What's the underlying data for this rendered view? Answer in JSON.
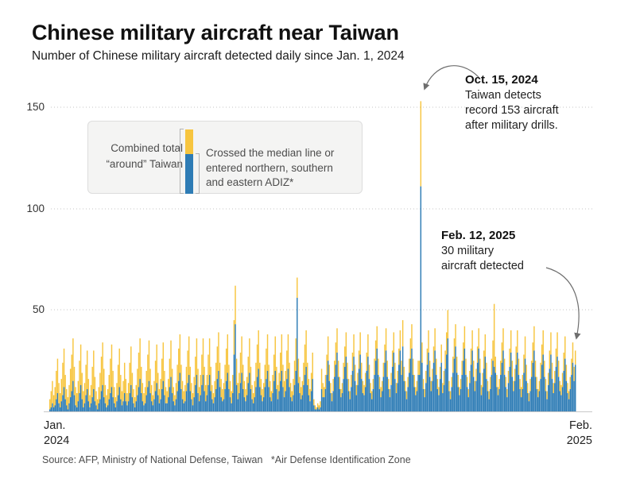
{
  "header": {
    "title": "Chinese military aircraft near Taiwan",
    "subtitle": "Number of Chinese military aircraft detected daily since Jan. 1, 2024"
  },
  "legend": {
    "combined_label": "Combined total\n“around” Taiwan",
    "crossed_label": "Crossed the median line or\nentered northern, southern\nand eastern ADIZ*"
  },
  "annotations": {
    "oct": {
      "title": "Oct. 15, 2024",
      "body": "Taiwan detects\nrecord 153 aircraft\nafter military drills."
    },
    "feb": {
      "title": "Feb. 12, 2025",
      "body": "30 military\naircraft detected"
    }
  },
  "axis": {
    "y_ticks": [
      "150",
      "100",
      "50"
    ],
    "x_left": "Jan.\n2024",
    "x_right": "Feb.\n2025"
  },
  "source": "Source: AFP, Ministry of National Defense, Taiwan   *Air Defense Identification Zone",
  "colors": {
    "combined_yellow": "#F7C53F",
    "crossed_blue": "#2E7CB5",
    "grid": "#c6c6c6",
    "baseline": "#c8c8c8",
    "arrow": "#6e6e6e"
  },
  "chart_data": {
    "type": "bar",
    "title": "Chinese military aircraft near Taiwan",
    "subtitle": "Number of Chinese military aircraft detected daily since Jan. 1, 2024",
    "x_unit": "day",
    "x_range_labels": [
      "Jan. 2024",
      "Feb. 2025"
    ],
    "start_date": "Jan. 1, 2024",
    "end_date": "Feb. 12, 2025",
    "ylim": [
      0,
      160
    ],
    "y_gridlines": [
      50,
      100,
      150
    ],
    "grid": "dotted-horizontal",
    "legend_position": "upper-left",
    "notable_points": [
      {
        "date": "Oct. 15, 2024",
        "total": 153,
        "note": "record after military drills"
      },
      {
        "date": "Feb. 12, 2025",
        "total": 30,
        "note": "30 military aircraft detected"
      }
    ],
    "series": [
      {
        "name": "Combined total “around” Taiwan (total bar height)",
        "color": "#F7C53F",
        "values": [
          6,
          10,
          15,
          8,
          12,
          20,
          26,
          14,
          9,
          16,
          24,
          31,
          18,
          11,
          7,
          13,
          21,
          28,
          36,
          22,
          12,
          9,
          15,
          25,
          33,
          19,
          10,
          14,
          23,
          30,
          16,
          8,
          13,
          22,
          30,
          17,
          10,
          6,
          12,
          19,
          27,
          34,
          21,
          13,
          8,
          11,
          18,
          26,
          33,
          20,
          12,
          7,
          14,
          23,
          31,
          18,
          10,
          15,
          24,
          16,
          9,
          14,
          24,
          32,
          19,
          11,
          7,
          13,
          21,
          29,
          36,
          22,
          14,
          9,
          12,
          20,
          28,
          35,
          21,
          13,
          8,
          15,
          25,
          33,
          19,
          11,
          16,
          26,
          34,
          20,
          12,
          10,
          16,
          26,
          35,
          21,
          12,
          8,
          14,
          23,
          31,
          38,
          23,
          15,
          10,
          13,
          22,
          30,
          37,
          22,
          14,
          9,
          17,
          27,
          36,
          21,
          12,
          18,
          28,
          36,
          22,
          13,
          18,
          28,
          36,
          22,
          13,
          9,
          15,
          24,
          32,
          39,
          24,
          16,
          11,
          14,
          23,
          31,
          38,
          23,
          15,
          10,
          18,
          45,
          62,
          26,
          14,
          19,
          29,
          37,
          23,
          15,
          11,
          17,
          27,
          36,
          22,
          13,
          9,
          15,
          24,
          33,
          40,
          24,
          16,
          11,
          14,
          23,
          31,
          38,
          23,
          15,
          10,
          18,
          28,
          37,
          22,
          13,
          19,
          29,
          38,
          23,
          15,
          20,
          30,
          38,
          24,
          14,
          10,
          16,
          25,
          36,
          66,
          26,
          17,
          12,
          15,
          24,
          33,
          40,
          24,
          16,
          11,
          19,
          29,
          6,
          3,
          2,
          4,
          3,
          5,
          21,
          14,
          12,
          18,
          28,
          37,
          23,
          14,
          9,
          16,
          25,
          34,
          41,
          25,
          17,
          11,
          14,
          24,
          32,
          39,
          24,
          16,
          10,
          18,
          29,
          38,
          23,
          13,
          19,
          30,
          39,
          24,
          15,
          13,
          19,
          29,
          38,
          23,
          14,
          10,
          16,
          26,
          35,
          42,
          26,
          17,
          12,
          15,
          24,
          33,
          41,
          25,
          16,
          11,
          19,
          30,
          39,
          24,
          14,
          20,
          31,
          40,
          25,
          45,
          22,
          15,
          10,
          17,
          26,
          36,
          43,
          26,
          18,
          12,
          15,
          25,
          25,
          153,
          34,
          16,
          11,
          20,
          31,
          40,
          25,
          15,
          21,
          32,
          41,
          26,
          16,
          12,
          22,
          33,
          14,
          20,
          30,
          39,
          50,
          15,
          10,
          17,
          27,
          36,
          43,
          27,
          18,
          12,
          16,
          25,
          34,
          42,
          26,
          17,
          11,
          20,
          31,
          40,
          25,
          15,
          21,
          32,
          41,
          26,
          13,
          19,
          30,
          38,
          24,
          15,
          10,
          17,
          26,
          35,
          53,
          27,
          18,
          12,
          16,
          25,
          34,
          41,
          26,
          17,
          11,
          20,
          31,
          40,
          25,
          15,
          21,
          32,
          40,
          26,
          16,
          12,
          18,
          28,
          37,
          23,
          14,
          9,
          16,
          25,
          34,
          42,
          25,
          17,
          11,
          15,
          24,
          33,
          40,
          25,
          16,
          10,
          19,
          30,
          39,
          24,
          14,
          20,
          31,
          39,
          25,
          15,
          13,
          19,
          29,
          37,
          23,
          14,
          10,
          17,
          26,
          34,
          22,
          30
        ]
      },
      {
        "name": "Crossed the median line or entered northern, southern and eastern ADIZ",
        "color": "#2E7CB5",
        "values": [
          1,
          2,
          4,
          2,
          3,
          6,
          9,
          4,
          2,
          5,
          8,
          12,
          6,
          3,
          1,
          4,
          7,
          10,
          15,
          8,
          3,
          2,
          5,
          9,
          13,
          6,
          2,
          4,
          8,
          11,
          5,
          2,
          4,
          7,
          11,
          5,
          3,
          1,
          4,
          6,
          10,
          13,
          7,
          4,
          2,
          3,
          6,
          9,
          12,
          7,
          4,
          2,
          5,
          8,
          12,
          6,
          3,
          5,
          9,
          5,
          3,
          5,
          9,
          13,
          7,
          4,
          2,
          5,
          8,
          12,
          16,
          9,
          5,
          3,
          4,
          8,
          12,
          15,
          9,
          5,
          3,
          6,
          10,
          14,
          8,
          4,
          6,
          11,
          15,
          8,
          4,
          4,
          7,
          12,
          17,
          9,
          5,
          3,
          6,
          10,
          15,
          19,
          11,
          6,
          4,
          5,
          10,
          14,
          18,
          10,
          6,
          3,
          7,
          13,
          18,
          9,
          5,
          8,
          13,
          18,
          10,
          5,
          8,
          13,
          18,
          10,
          6,
          4,
          7,
          11,
          16,
          20,
          12,
          7,
          5,
          6,
          11,
          15,
          19,
          11,
          7,
          4,
          9,
          28,
          43,
          13,
          6,
          9,
          14,
          19,
          11,
          7,
          5,
          8,
          14,
          19,
          11,
          6,
          4,
          7,
          12,
          17,
          21,
          12,
          8,
          5,
          7,
          12,
          16,
          20,
          12,
          7,
          5,
          9,
          15,
          20,
          11,
          6,
          10,
          15,
          20,
          12,
          7,
          10,
          16,
          21,
          12,
          7,
          5,
          8,
          13,
          20,
          56,
          14,
          9,
          6,
          8,
          13,
          18,
          22,
          13,
          8,
          5,
          10,
          16,
          3,
          1,
          1,
          2,
          1,
          2,
          11,
          7,
          7,
          11,
          18,
          25,
          15,
          9,
          5,
          10,
          17,
          23,
          29,
          17,
          11,
          7,
          9,
          16,
          22,
          27,
          16,
          10,
          6,
          12,
          20,
          27,
          15,
          8,
          13,
          21,
          28,
          16,
          9,
          8,
          12,
          20,
          27,
          16,
          9,
          6,
          11,
          18,
          25,
          31,
          18,
          11,
          7,
          10,
          17,
          24,
          30,
          17,
          11,
          7,
          13,
          22,
          29,
          16,
          9,
          14,
          23,
          30,
          18,
          32,
          15,
          10,
          6,
          12,
          19,
          26,
          31,
          18,
          12,
          8,
          10,
          18,
          18,
          111,
          24,
          11,
          7,
          14,
          23,
          29,
          17,
          10,
          15,
          24,
          30,
          18,
          11,
          8,
          16,
          24,
          9,
          13,
          21,
          28,
          36,
          10,
          6,
          12,
          19,
          26,
          32,
          19,
          12,
          8,
          11,
          18,
          25,
          31,
          18,
          12,
          7,
          14,
          23,
          30,
          17,
          10,
          15,
          24,
          31,
          19,
          8,
          12,
          21,
          27,
          16,
          10,
          6,
          11,
          18,
          25,
          22,
          19,
          12,
          8,
          11,
          18,
          24,
          30,
          18,
          12,
          7,
          14,
          22,
          29,
          17,
          10,
          15,
          23,
          29,
          18,
          11,
          7,
          11,
          19,
          26,
          15,
          9,
          5,
          10,
          17,
          24,
          30,
          17,
          11,
          7,
          10,
          16,
          23,
          28,
          17,
          10,
          6,
          13,
          21,
          28,
          16,
          9,
          14,
          22,
          27,
          17,
          10,
          8,
          12,
          20,
          26,
          15,
          9,
          6,
          11,
          18,
          24,
          15,
          23
        ]
      }
    ]
  }
}
